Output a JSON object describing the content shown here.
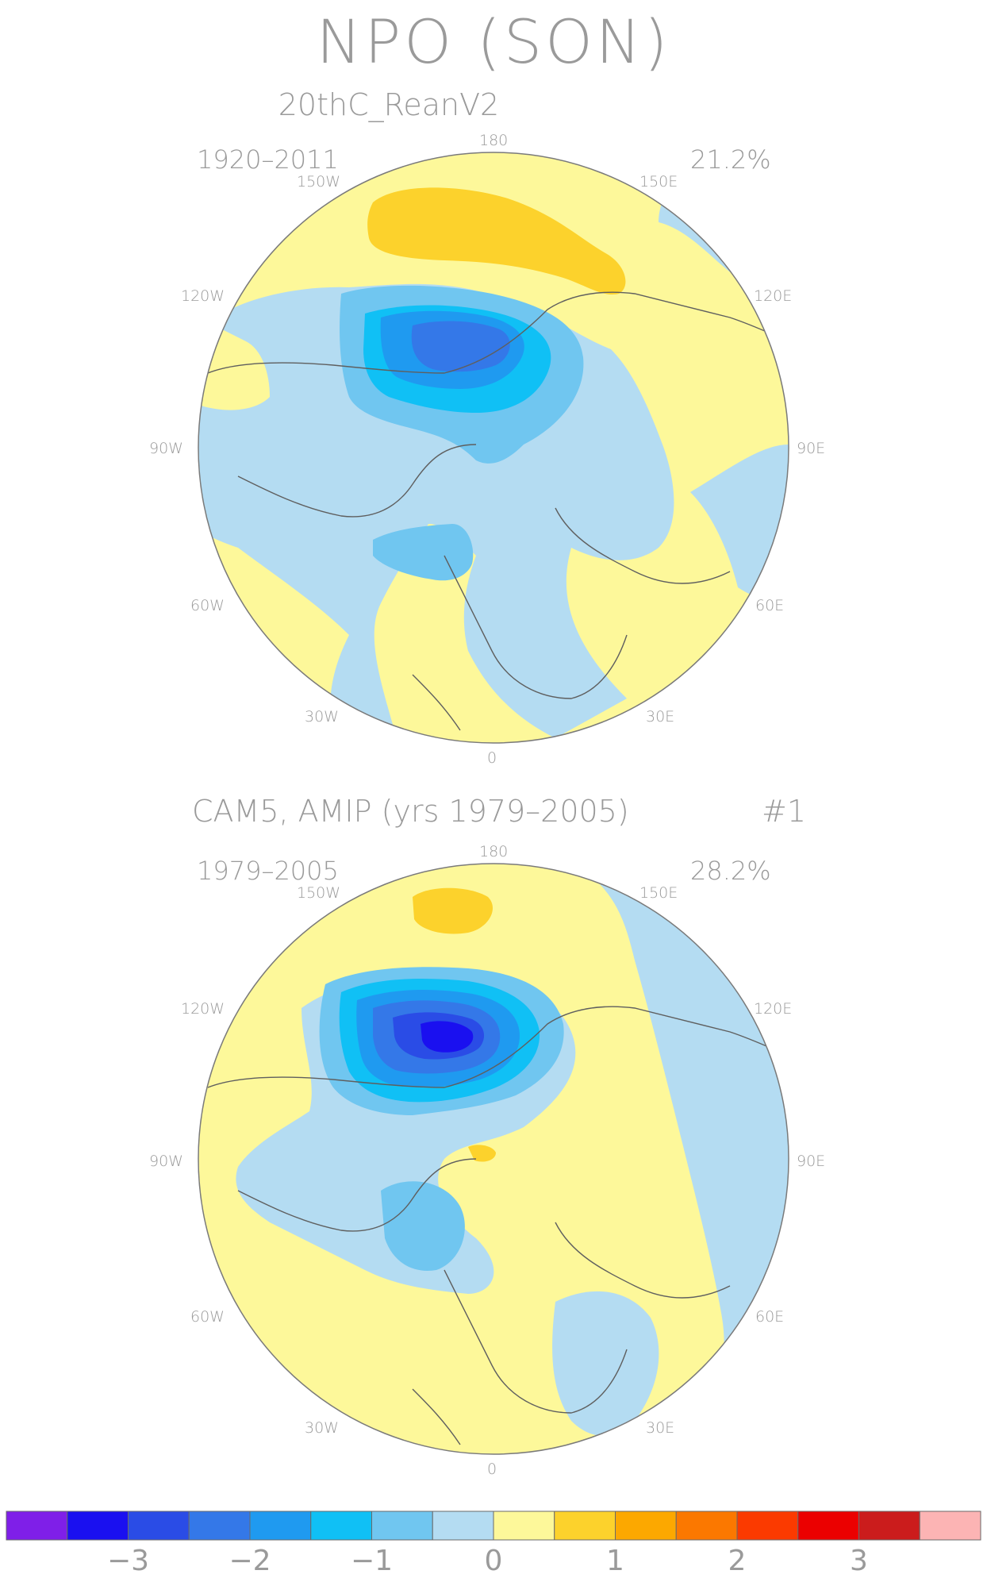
{
  "title": "NPO (SON)",
  "panels": [
    {
      "subtitle": "20thC_ReanV2",
      "period": "1920–2011",
      "variance": "21.2%",
      "number": ""
    },
    {
      "subtitle": "CAM5, AMIP (yrs 1979–2005)",
      "period": "1979–2005",
      "variance": "28.2%",
      "number": "#1"
    }
  ],
  "longitudes": {
    "top": "180",
    "bottom": "0",
    "w150": "150W",
    "w120": "120W",
    "w90": "90W",
    "w60": "60W",
    "w30": "30W",
    "e150": "150E",
    "e120": "120E",
    "e90": "90E",
    "e60": "60E",
    "e30": "30E"
  },
  "colorbar": {
    "colors": [
      "#7f1fe8",
      "#1a10f0",
      "#2a4ce6",
      "#3478e8",
      "#1f9af0",
      "#10c0f5",
      "#70c6f0",
      "#b4dcf2",
      "#fdf89a",
      "#fcd22c",
      "#fca800",
      "#fb7800",
      "#fb3a00",
      "#eb0000",
      "#cb1c1c",
      "#fcb4b4"
    ],
    "labels": [
      "−3",
      "−2",
      "−1",
      "0",
      "1",
      "2",
      "3"
    ]
  },
  "colors": {
    "text": "#9a9a9a",
    "outline": "#5f5f5f"
  }
}
